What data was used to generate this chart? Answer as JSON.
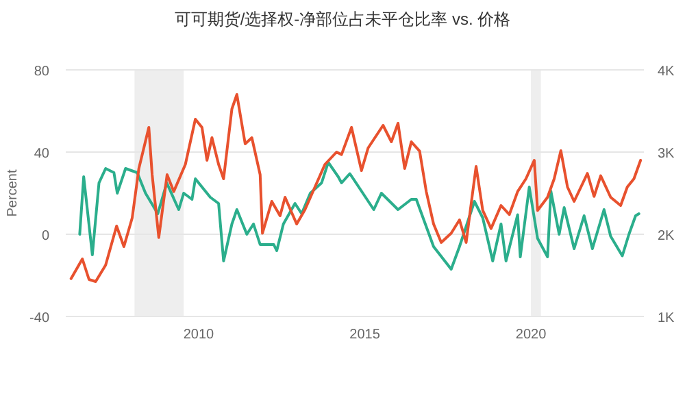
{
  "chart_data": {
    "type": "line",
    "title": "可可期货/选择权-净部位占未平仓比率 vs. 价格",
    "ylabel": "Percent",
    "xlim": [
      2006.0,
      2023.4
    ],
    "xticks": [
      2010,
      2015,
      2020
    ],
    "ylim": [
      -40,
      80
    ],
    "yticks": [
      -40,
      0,
      40,
      80
    ],
    "y2lim": [
      1000,
      4000
    ],
    "y2ticks": [
      {
        "value": 1000,
        "label": "1K"
      },
      {
        "value": 2000,
        "label": "2K"
      },
      {
        "value": 3000,
        "label": "3K"
      },
      {
        "value": 4000,
        "label": "4K"
      }
    ],
    "grid": "y",
    "bands": [
      {
        "axis": "x",
        "from": 2008.07,
        "to": 2009.55,
        "color": "#eeeeee"
      },
      {
        "axis": "x",
        "from": 2020.0,
        "to": 2020.3,
        "color": "#eeeeee"
      }
    ],
    "series": [
      {
        "color": "#2bae8c",
        "x": [
          2006.42,
          2006.54,
          2006.8,
          2007.0,
          2007.2,
          2007.45,
          2007.55,
          2007.8,
          2008.15,
          2008.4,
          2008.77,
          2009.04,
          2009.4,
          2009.55,
          2009.8,
          2009.9,
          2010.35,
          2010.6,
          2010.75,
          2011.0,
          2011.15,
          2011.45,
          2011.65,
          2011.85,
          2012.26,
          2012.35,
          2012.55,
          2012.9,
          2013.1,
          2013.36,
          2013.7,
          2013.9,
          2014.2,
          2014.3,
          2014.55,
          2015.27,
          2015.5,
          2016.0,
          2016.4,
          2016.55,
          2017.07,
          2017.6,
          2017.85,
          2018.3,
          2018.55,
          2018.85,
          2019.1,
          2019.25,
          2019.6,
          2019.68,
          2019.95,
          2020.2,
          2020.5,
          2020.6,
          2020.85,
          2021.0,
          2021.3,
          2021.6,
          2021.85,
          2022.2,
          2022.4,
          2022.75,
          2022.95,
          2023.15,
          2023.25
        ],
        "values": [
          0,
          28,
          -10,
          25,
          32,
          30,
          20,
          32,
          30,
          20,
          10,
          25,
          12,
          20,
          17,
          27,
          18,
          15,
          -13,
          5,
          12,
          0,
          5,
          -5,
          -5,
          -8,
          5,
          15,
          10,
          20,
          25,
          35,
          28,
          25,
          29.5,
          12,
          20,
          12,
          17,
          17,
          -6,
          -17,
          -6,
          16,
          8,
          -13,
          5,
          -13,
          9.5,
          -11,
          23,
          -2,
          -11,
          21,
          0,
          13,
          -7,
          9,
          -7,
          12,
          -1,
          -10.5,
          0,
          9,
          10
        ]
      },
      {
        "color": "#e8512e",
        "axis": "y2",
        "x": [
          2006.16,
          2006.5,
          2006.7,
          2006.9,
          2007.2,
          2007.53,
          2007.75,
          2008.0,
          2008.2,
          2008.5,
          2008.6,
          2008.8,
          2009.05,
          2009.25,
          2009.6,
          2009.9,
          2010.1,
          2010.25,
          2010.4,
          2010.6,
          2010.75,
          2011.0,
          2011.15,
          2011.4,
          2011.6,
          2011.85,
          2011.92,
          2012.2,
          2012.45,
          2012.6,
          2012.95,
          2013.2,
          2013.5,
          2013.8,
          2014.15,
          2014.3,
          2014.6,
          2014.9,
          2015.1,
          2015.55,
          2015.8,
          2016.0,
          2016.2,
          2016.4,
          2016.65,
          2016.85,
          2017.07,
          2017.3,
          2017.6,
          2017.85,
          2018.05,
          2018.25,
          2018.35,
          2018.55,
          2018.8,
          2019.1,
          2019.35,
          2019.6,
          2019.85,
          2020.1,
          2020.2,
          2020.5,
          2020.7,
          2020.9,
          2021.1,
          2021.3,
          2021.7,
          2021.9,
          2022.1,
          2022.4,
          2022.7,
          2022.9,
          2023.1,
          2023.3
        ],
        "values": [
          1460,
          1700,
          1450,
          1425,
          1625,
          2100,
          1850,
          2200,
          2800,
          3300,
          2725,
          1960,
          2725,
          2520,
          2850,
          3400,
          3300,
          2900,
          3175,
          2850,
          2675,
          3525,
          3700,
          3100,
          3175,
          2725,
          2012,
          2400,
          2225,
          2450,
          2125,
          2300,
          2575,
          2850,
          3000,
          2970,
          3300,
          2775,
          3050,
          3325,
          3125,
          3350,
          2800,
          3125,
          3012,
          2520,
          2125,
          1900,
          2012,
          2175,
          1900,
          2520,
          2825,
          2290,
          2070,
          2350,
          2240,
          2520,
          2675,
          2900,
          2290,
          2450,
          2675,
          3017,
          2575,
          2400,
          2740,
          2460,
          2712,
          2450,
          2350,
          2575,
          2675,
          2900
        ]
      }
    ]
  }
}
